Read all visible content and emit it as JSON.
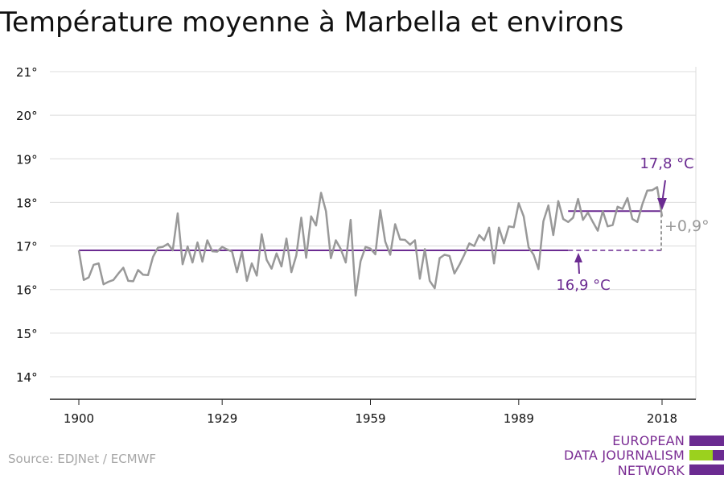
{
  "title": "Température moyenne à Marbella et environs",
  "source": "Source: EDJNet / ECMWF",
  "logo": {
    "line1": "EUROPEAN",
    "line2": "DATA JOURNALISM",
    "line3": "NETWORK"
  },
  "colors": {
    "series": "#999999",
    "accent": "#6b2b91",
    "logo_green": "#9bd11e",
    "grid": "#dcdcdc",
    "axis": "#222222"
  },
  "chart_data": {
    "type": "line",
    "title": "Température moyenne à Marbella et environs",
    "xlabel": "",
    "ylabel": "",
    "xlim": [
      1900,
      2018
    ],
    "ylim": [
      14,
      21
    ],
    "x_ticks": [
      1900,
      1929,
      1959,
      1989,
      2018
    ],
    "x_tick_labels": [
      "1900",
      "1929",
      "1959",
      "1989",
      "2018"
    ],
    "y_ticks": [
      14,
      15,
      16,
      17,
      18,
      19,
      20,
      21
    ],
    "y_tick_labels": [
      "14°",
      "15°",
      "16°",
      "17°",
      "18°",
      "19°",
      "20°",
      "21°"
    ],
    "grid": true,
    "series": [
      {
        "x_start": 1900,
        "x_end": 2018,
        "values": [
          16.9,
          16.22,
          16.28,
          16.57,
          16.6,
          16.12,
          16.18,
          16.22,
          16.37,
          16.5,
          16.2,
          16.19,
          16.45,
          16.34,
          16.33,
          16.75,
          16.96,
          16.98,
          17.05,
          16.9,
          17.75,
          16.58,
          16.99,
          16.62,
          17.08,
          16.64,
          17.13,
          16.88,
          16.87,
          16.98,
          16.92,
          16.87,
          16.4,
          16.87,
          16.2,
          16.6,
          16.32,
          17.27,
          16.68,
          16.48,
          16.83,
          16.53,
          17.17,
          16.4,
          16.78,
          17.65,
          16.73,
          17.68,
          17.47,
          18.22,
          17.8,
          16.72,
          17.13,
          16.93,
          16.62,
          17.6,
          15.86,
          16.65,
          16.98,
          16.94,
          16.81,
          17.82,
          17.1,
          16.8,
          17.5,
          17.15,
          17.14,
          17.03,
          17.13,
          16.25,
          16.93,
          16.2,
          16.03,
          16.72,
          16.8,
          16.77,
          16.37,
          16.57,
          16.8,
          17.06,
          17.0,
          17.25,
          17.13,
          17.42,
          16.6,
          17.42,
          17.06,
          17.45,
          17.43,
          17.98,
          17.68,
          16.97,
          16.8,
          16.47,
          17.57,
          17.93,
          17.25,
          18.03,
          17.62,
          17.55,
          17.65,
          18.08,
          17.6,
          17.77,
          17.55,
          17.35,
          17.8,
          17.45,
          17.48,
          17.9,
          17.85,
          18.1,
          17.62,
          17.55,
          17.95,
          18.27,
          18.28,
          18.35,
          17.68
        ]
      }
    ],
    "reference_lines": [
      {
        "label": "16,9 °C",
        "value": 16.9,
        "x_start": 1900,
        "x_end": 1999,
        "dashed_to": 2018
      },
      {
        "label": "17,8 °C",
        "value": 17.8,
        "x_start": 1999,
        "x_end": 2018
      }
    ],
    "annotations": [
      {
        "label": "+0,9°",
        "x": 2018,
        "from": 16.9,
        "to": 17.8
      }
    ]
  }
}
